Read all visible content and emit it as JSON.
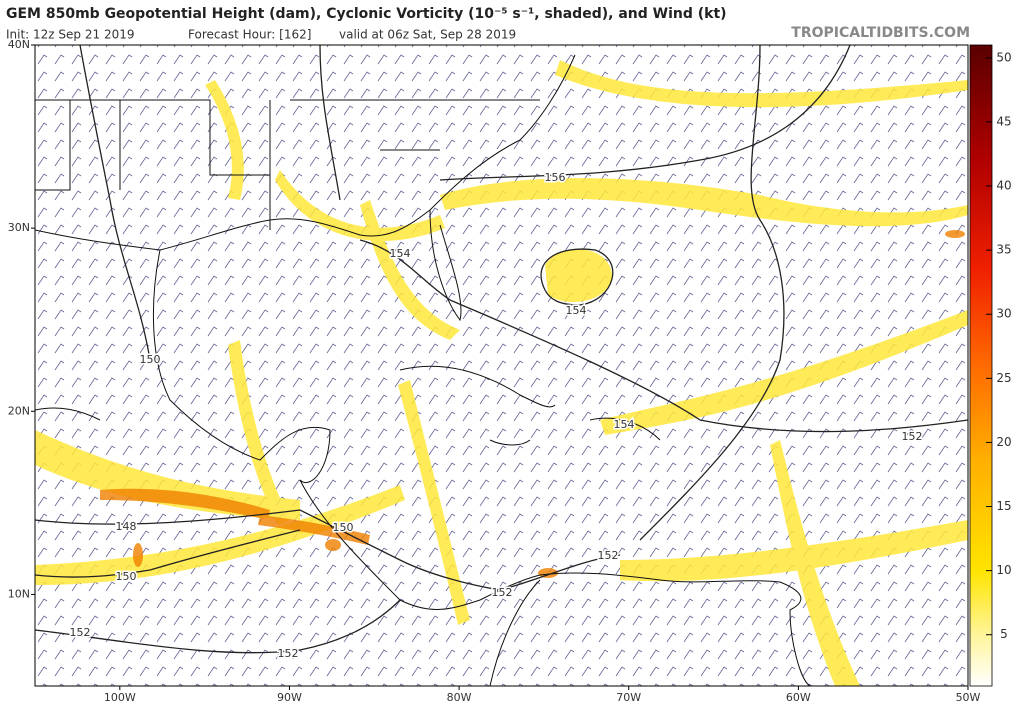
{
  "header": {
    "title": "GEM 850mb Geopotential Height (dam), Cyclonic Vorticity (10⁻⁵ s⁻¹, shaded), and Wind (kt)",
    "init": "Init: 12z Sep 21 2019",
    "forecast_hour": "Forecast Hour: [162]",
    "valid": "valid at 06z Sat, Sep 28 2019",
    "site": "TROPICALTIDBITS.COM"
  },
  "map": {
    "latlim": [
      5,
      40
    ],
    "latticks": [
      {
        "value": 10,
        "label": "10N"
      },
      {
        "value": 20,
        "label": "20N"
      },
      {
        "value": 30,
        "label": "30N"
      },
      {
        "value": 40,
        "label": "40N"
      }
    ],
    "lonlim": [
      -105,
      -50
    ],
    "lonticks": [
      {
        "value": -100,
        "label": "100W"
      },
      {
        "value": -90,
        "label": "90W"
      },
      {
        "value": -80,
        "label": "80W"
      },
      {
        "value": -70,
        "label": "70W"
      },
      {
        "value": -60,
        "label": "60W"
      },
      {
        "value": -50,
        "label": "50W"
      }
    ],
    "contour_labels": [
      "156",
      "154",
      "154",
      "150",
      "154",
      "152",
      "148",
      "150",
      "150",
      "152",
      "152",
      "152",
      "152"
    ]
  },
  "colorbar": {
    "lim": [
      1,
      51
    ],
    "ticks": [
      5,
      10,
      15,
      20,
      25,
      30,
      35,
      40,
      45,
      50
    ]
  }
}
